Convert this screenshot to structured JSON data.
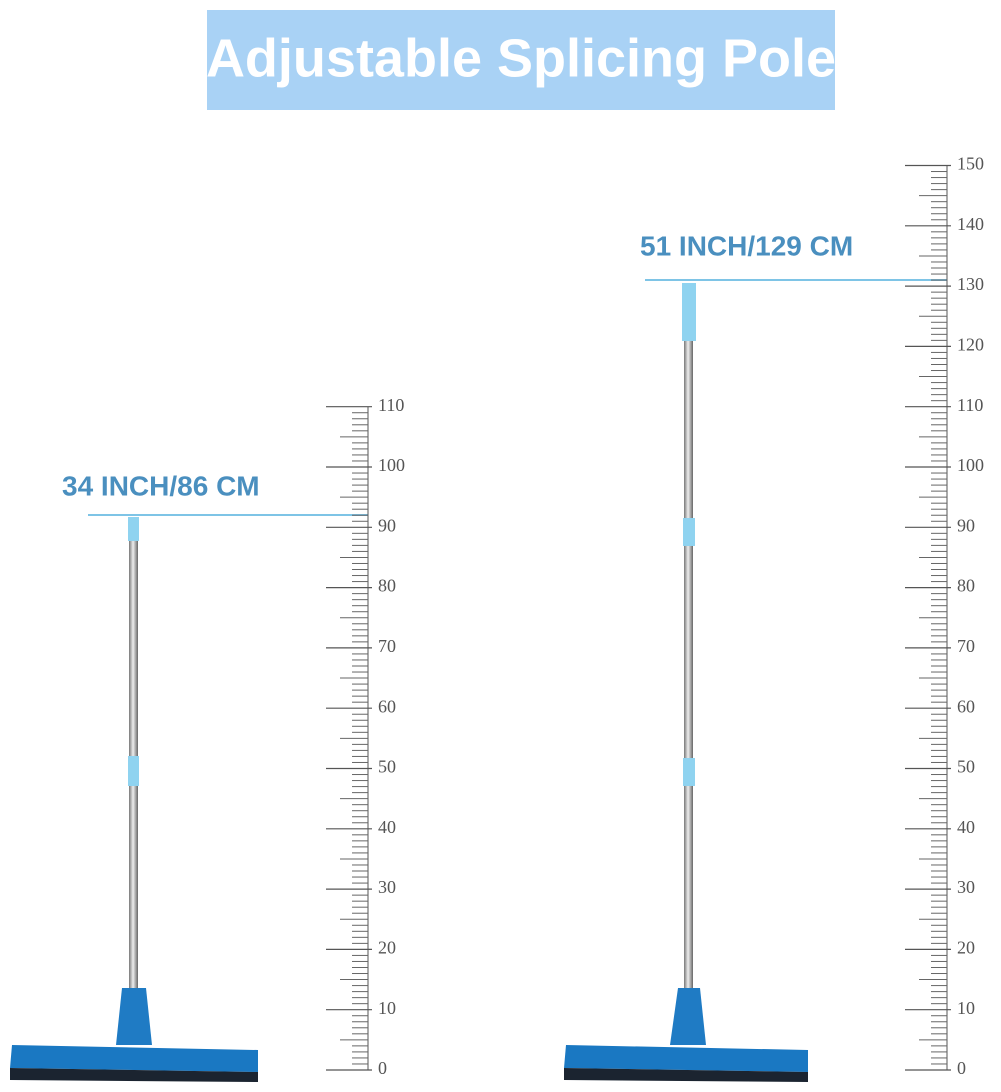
{
  "title": "Adjustable Splicing Pole",
  "rulers": [
    {
      "label": "34 INCH/86 CM",
      "ticks": [
        0,
        10,
        20,
        30,
        40,
        50,
        60,
        70,
        80,
        90,
        100,
        110
      ]
    },
    {
      "label": "51 INCH/129 CM",
      "ticks": [
        0,
        10,
        20,
        30,
        40,
        50,
        60,
        70,
        80,
        90,
        100,
        110,
        120,
        130,
        140,
        150
      ]
    }
  ]
}
